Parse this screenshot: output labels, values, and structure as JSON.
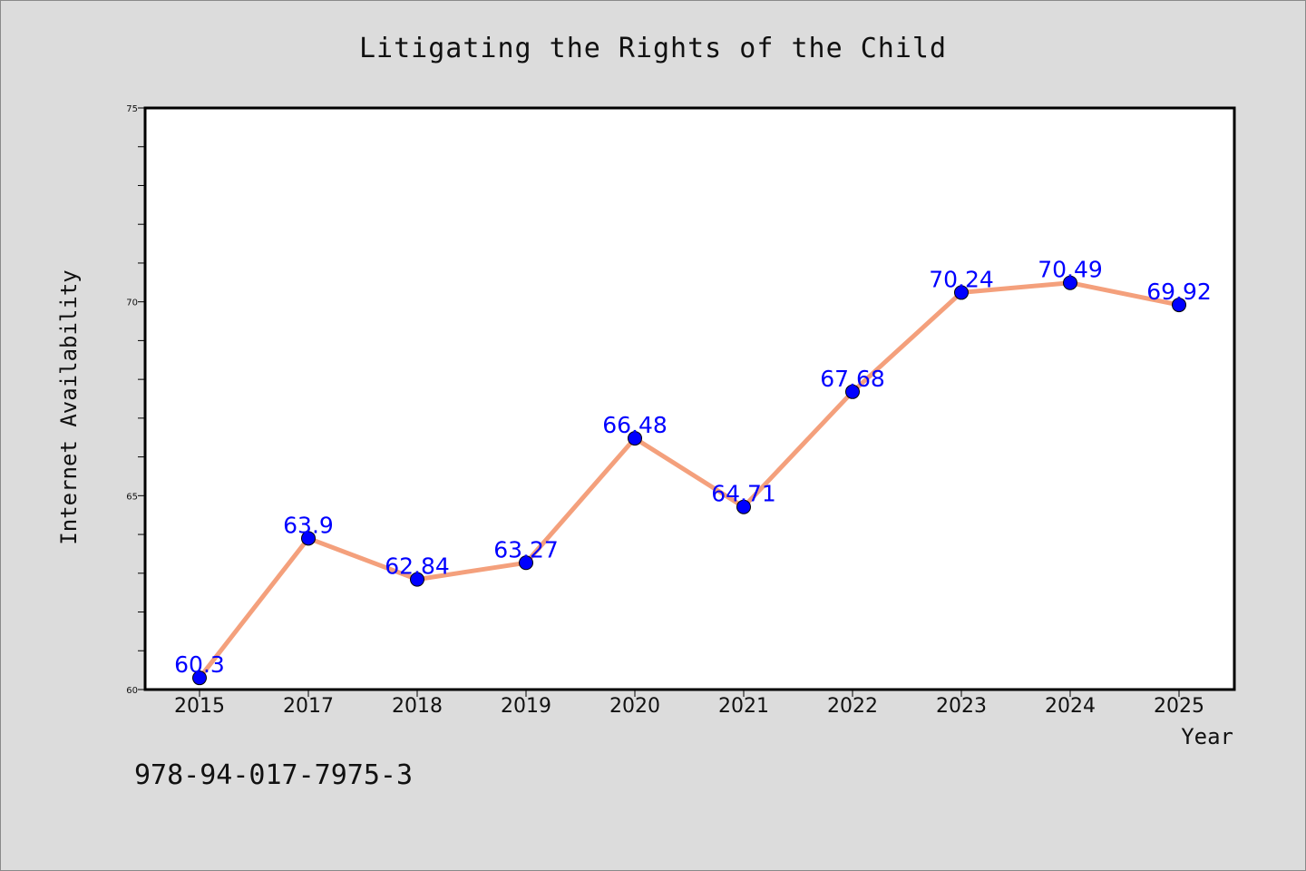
{
  "chart_data": {
    "type": "line",
    "title": "Litigating the Rights of the Child",
    "xlabel": "Year",
    "ylabel": "Internet Availability",
    "categories": [
      "2015",
      "2017",
      "2018",
      "2019",
      "2020",
      "2021",
      "2022",
      "2023",
      "2024",
      "2025"
    ],
    "series": [
      {
        "values": [
          60.3,
          63.9,
          62.84,
          63.27,
          66.48,
          64.71,
          67.68,
          70.24,
          70.49,
          69.92
        ],
        "labels": [
          "60.3",
          "63.9",
          "62.84",
          "63.27",
          "66.48",
          "64.71",
          "67.68",
          "70.24",
          "70.49",
          "69.92"
        ],
        "line_color": "#f4a07c",
        "marker_color": "#0000ff"
      }
    ],
    "ylim": [
      60,
      75
    ],
    "yticks": [
      60,
      65,
      70,
      75
    ],
    "ytick_labels": [
      "60",
      "65",
      "70",
      "75"
    ],
    "grid": false,
    "legend": "none"
  },
  "footer": {
    "isbn": "978-94-017-7975-3"
  },
  "colors": {
    "background": "#dcdcdc",
    "plot_background": "#ffffff",
    "line": "#f4a07c",
    "marker": "#0000ff",
    "data_label": "#0000ff"
  }
}
